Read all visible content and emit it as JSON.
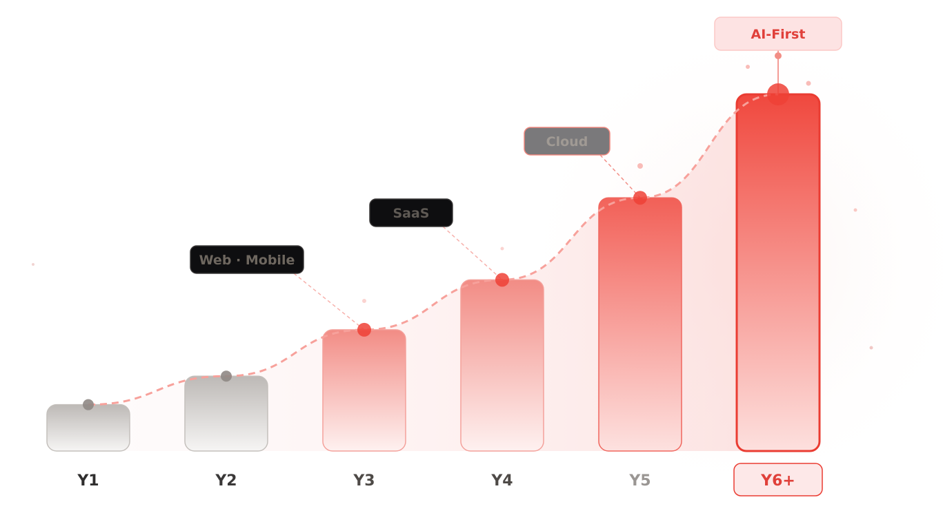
{
  "chart_data": {
    "type": "bar",
    "title": "",
    "xlabel": "",
    "ylabel": "",
    "categories": [
      "Y1",
      "Y2",
      "Y3",
      "Y4",
      "Y5",
      "Y6+"
    ],
    "values": [
      13,
      21,
      34,
      48,
      71,
      100
    ],
    "ylim": [
      0,
      100
    ],
    "grid": false,
    "trend_line": "dashed curve through bar tops",
    "annotations": [
      {
        "category": "Y2",
        "label": "Web · Mobile"
      },
      {
        "category": "Y3",
        "label": "SaaS"
      },
      {
        "category": "Y4",
        "label": "Cloud"
      },
      {
        "category": "Y6+",
        "label": "AI-First"
      }
    ],
    "highlighted_category": "Y6+",
    "colors": {
      "accent": "#ef4136",
      "muted_bar": "#c8c4c0",
      "dark_label": "#0e0e10",
      "grey_label": "#7a797b",
      "highlight_label_bg": "#fde3e3"
    }
  }
}
